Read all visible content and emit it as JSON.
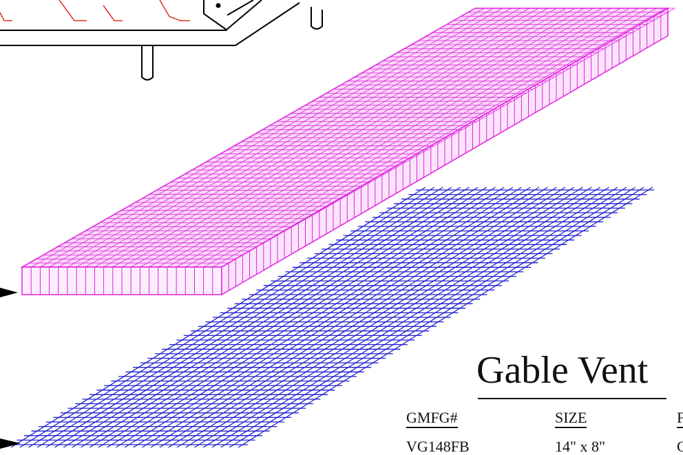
{
  "title": "Gable Vent",
  "table": {
    "headers": [
      "GMFG#",
      "SIZE",
      "F"
    ],
    "rows": [
      [
        "VG148FB",
        "14\" x 8\"",
        "C"
      ]
    ]
  },
  "colors": {
    "frame_lines": "#000000",
    "insect_mesh": "#e020e0",
    "wire_screen": "#2020d0",
    "louver_hint": "#e03020"
  }
}
